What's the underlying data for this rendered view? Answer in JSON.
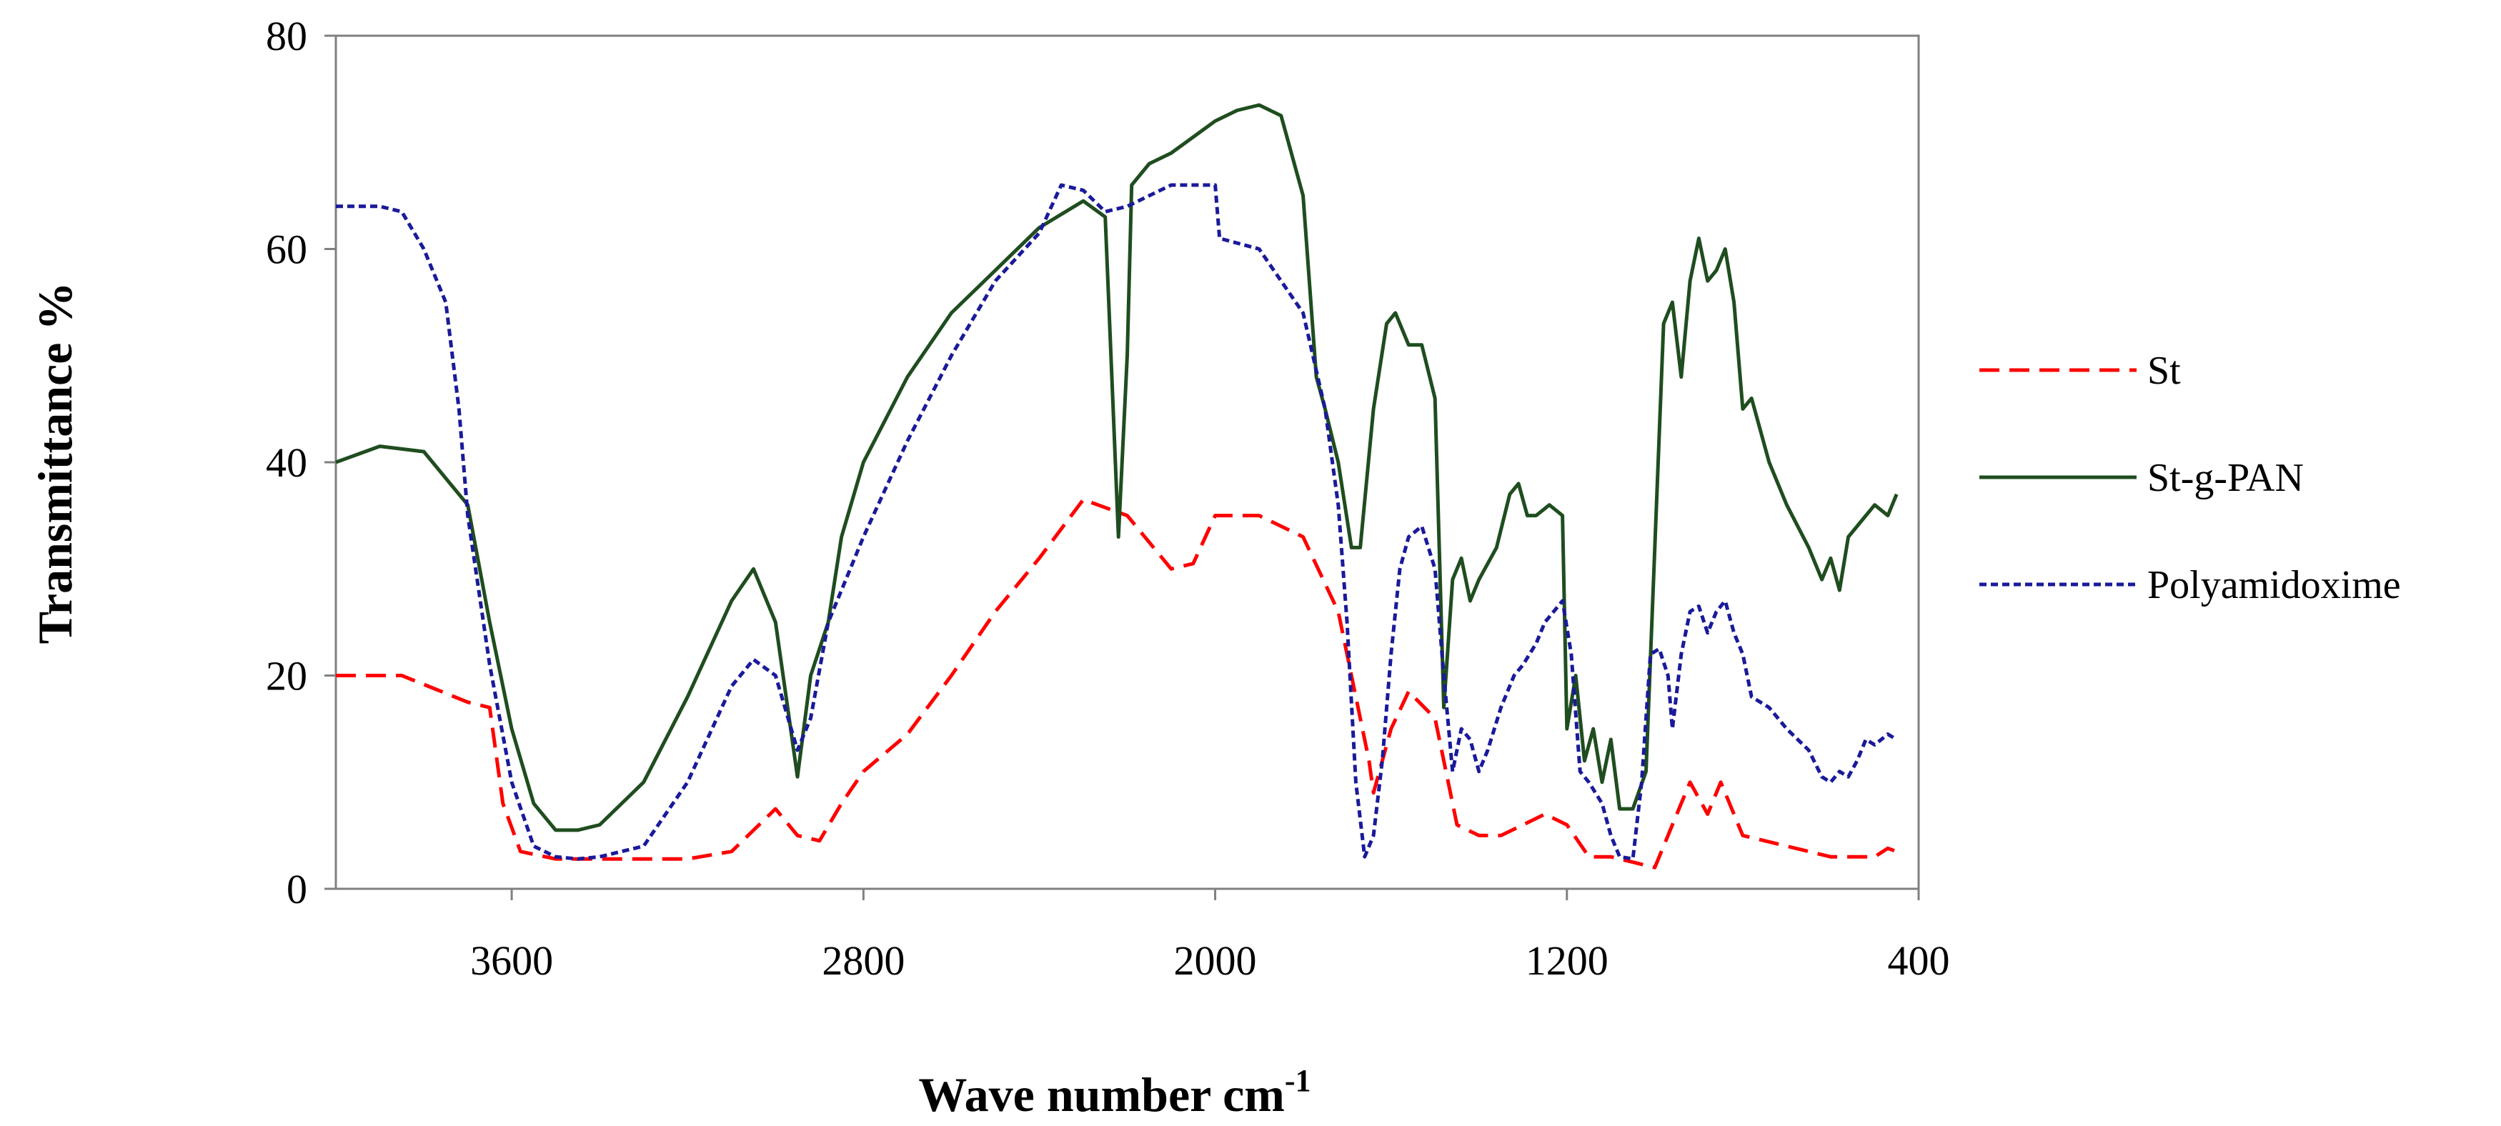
{
  "chart_data": {
    "type": "line",
    "title": "",
    "xlabel": "Wave number cm",
    "xlabel_superscript": "-1",
    "ylabel": "Transmittance %",
    "xlim": [
      4000,
      400
    ],
    "ylim": [
      0,
      80
    ],
    "xticks": [
      {
        "value": 3600,
        "label": "3600"
      },
      {
        "value": 2800,
        "label": "2800"
      },
      {
        "value": 2000,
        "label": "2000"
      },
      {
        "value": 1200,
        "label": "1200"
      },
      {
        "value": 400,
        "label": "400"
      }
    ],
    "yticks": [
      {
        "value": 0,
        "label": "0"
      },
      {
        "value": 20,
        "label": "20"
      },
      {
        "value": 40,
        "label": "40"
      },
      {
        "value": 60,
        "label": "60"
      },
      {
        "value": 80,
        "label": "80"
      }
    ],
    "legend_position": "right",
    "series": [
      {
        "name": "St",
        "color": "#ff0000",
        "dash": "long-dash",
        "points": [
          [
            4000,
            20
          ],
          [
            3850,
            20
          ],
          [
            3700,
            17.5
          ],
          [
            3650,
            17
          ],
          [
            3620,
            8
          ],
          [
            3580,
            3.5
          ],
          [
            3500,
            2.8
          ],
          [
            3400,
            2.8
          ],
          [
            3200,
            2.8
          ],
          [
            3100,
            3.5
          ],
          [
            3000,
            7.5
          ],
          [
            2950,
            5
          ],
          [
            2900,
            4.5
          ],
          [
            2850,
            8
          ],
          [
            2800,
            11
          ],
          [
            2700,
            14.5
          ],
          [
            2600,
            20
          ],
          [
            2500,
            26
          ],
          [
            2400,
            31
          ],
          [
            2300,
            36.5
          ],
          [
            2200,
            35
          ],
          [
            2100,
            30
          ],
          [
            2050,
            30.5
          ],
          [
            2000,
            35
          ],
          [
            1900,
            35
          ],
          [
            1800,
            33
          ],
          [
            1720,
            26
          ],
          [
            1650,
            12
          ],
          [
            1640,
            9
          ],
          [
            1600,
            15
          ],
          [
            1560,
            18.5
          ],
          [
            1500,
            16
          ],
          [
            1450,
            6
          ],
          [
            1400,
            5
          ],
          [
            1350,
            5
          ],
          [
            1300,
            6
          ],
          [
            1250,
            7
          ],
          [
            1200,
            6
          ],
          [
            1150,
            3
          ],
          [
            1100,
            3
          ],
          [
            1050,
            2.5
          ],
          [
            1000,
            2
          ],
          [
            950,
            7
          ],
          [
            920,
            10
          ],
          [
            880,
            7
          ],
          [
            850,
            10
          ],
          [
            800,
            5
          ],
          [
            700,
            4
          ],
          [
            600,
            3
          ],
          [
            500,
            3
          ],
          [
            470,
            3.8
          ],
          [
            450,
            3.5
          ]
        ]
      },
      {
        "name": "St-g-PAN",
        "color": "#1f4d1f",
        "dash": "solid",
        "points": [
          [
            4000,
            40
          ],
          [
            3900,
            41.5
          ],
          [
            3800,
            41
          ],
          [
            3700,
            36
          ],
          [
            3650,
            25
          ],
          [
            3600,
            15
          ],
          [
            3550,
            8
          ],
          [
            3500,
            5.5
          ],
          [
            3450,
            5.5
          ],
          [
            3400,
            6
          ],
          [
            3300,
            10
          ],
          [
            3200,
            18
          ],
          [
            3100,
            27
          ],
          [
            3050,
            30
          ],
          [
            3000,
            25
          ],
          [
            2950,
            10.5
          ],
          [
            2920,
            20
          ],
          [
            2880,
            25
          ],
          [
            2850,
            33
          ],
          [
            2800,
            40
          ],
          [
            2700,
            48
          ],
          [
            2600,
            54
          ],
          [
            2500,
            58
          ],
          [
            2400,
            62
          ],
          [
            2300,
            64.5
          ],
          [
            2250,
            63
          ],
          [
            2220,
            33
          ],
          [
            2200,
            50
          ],
          [
            2190,
            66
          ],
          [
            2150,
            68
          ],
          [
            2100,
            69
          ],
          [
            2050,
            70.5
          ],
          [
            2000,
            72
          ],
          [
            1950,
            73
          ],
          [
            1900,
            73.5
          ],
          [
            1850,
            72.5
          ],
          [
            1800,
            65
          ],
          [
            1770,
            48
          ],
          [
            1750,
            45
          ],
          [
            1720,
            40
          ],
          [
            1690,
            32
          ],
          [
            1670,
            32
          ],
          [
            1640,
            45
          ],
          [
            1610,
            53
          ],
          [
            1590,
            54
          ],
          [
            1560,
            51
          ],
          [
            1530,
            51
          ],
          [
            1500,
            46
          ],
          [
            1480,
            17
          ],
          [
            1460,
            29
          ],
          [
            1440,
            31
          ],
          [
            1420,
            27
          ],
          [
            1400,
            29
          ],
          [
            1360,
            32
          ],
          [
            1330,
            37
          ],
          [
            1310,
            38
          ],
          [
            1290,
            35
          ],
          [
            1270,
            35
          ],
          [
            1240,
            36
          ],
          [
            1210,
            35
          ],
          [
            1200,
            15
          ],
          [
            1180,
            20
          ],
          [
            1160,
            12
          ],
          [
            1140,
            15
          ],
          [
            1120,
            10
          ],
          [
            1100,
            14
          ],
          [
            1080,
            7.5
          ],
          [
            1050,
            7.5
          ],
          [
            1020,
            11
          ],
          [
            980,
            53
          ],
          [
            960,
            55
          ],
          [
            940,
            48
          ],
          [
            920,
            57
          ],
          [
            900,
            61
          ],
          [
            880,
            57
          ],
          [
            860,
            58
          ],
          [
            840,
            60
          ],
          [
            820,
            55
          ],
          [
            800,
            45
          ],
          [
            780,
            46
          ],
          [
            760,
            43
          ],
          [
            740,
            40
          ],
          [
            700,
            36
          ],
          [
            650,
            32
          ],
          [
            620,
            29
          ],
          [
            600,
            31
          ],
          [
            580,
            28
          ],
          [
            560,
            33
          ],
          [
            520,
            35
          ],
          [
            500,
            36
          ],
          [
            470,
            35
          ],
          [
            450,
            37
          ]
        ]
      },
      {
        "name": "Polyamidoxime",
        "color": "#1a1a9a",
        "dash": "short-dash",
        "points": [
          [
            4000,
            64
          ],
          [
            3900,
            64
          ],
          [
            3850,
            63.5
          ],
          [
            3800,
            60
          ],
          [
            3750,
            55
          ],
          [
            3720,
            45
          ],
          [
            3700,
            35
          ],
          [
            3650,
            21
          ],
          [
            3600,
            10
          ],
          [
            3550,
            4
          ],
          [
            3500,
            3
          ],
          [
            3450,
            2.8
          ],
          [
            3400,
            3
          ],
          [
            3300,
            4
          ],
          [
            3200,
            10
          ],
          [
            3100,
            19
          ],
          [
            3050,
            21.5
          ],
          [
            3000,
            20
          ],
          [
            2950,
            13
          ],
          [
            2920,
            16
          ],
          [
            2880,
            25
          ],
          [
            2850,
            28
          ],
          [
            2800,
            33
          ],
          [
            2700,
            42
          ],
          [
            2600,
            50
          ],
          [
            2500,
            57
          ],
          [
            2400,
            61.5
          ],
          [
            2350,
            66
          ],
          [
            2300,
            65.5
          ],
          [
            2250,
            63.5
          ],
          [
            2200,
            64
          ],
          [
            2100,
            66
          ],
          [
            2000,
            66
          ],
          [
            1990,
            61
          ],
          [
            1900,
            60
          ],
          [
            1800,
            54
          ],
          [
            1750,
            45
          ],
          [
            1720,
            36
          ],
          [
            1700,
            25
          ],
          [
            1680,
            10
          ],
          [
            1660,
            3
          ],
          [
            1640,
            5
          ],
          [
            1620,
            12
          ],
          [
            1600,
            22
          ],
          [
            1580,
            30
          ],
          [
            1560,
            33
          ],
          [
            1530,
            34
          ],
          [
            1500,
            30
          ],
          [
            1480,
            20
          ],
          [
            1460,
            11
          ],
          [
            1440,
            15
          ],
          [
            1420,
            14
          ],
          [
            1400,
            11
          ],
          [
            1380,
            13
          ],
          [
            1350,
            17
          ],
          [
            1320,
            20
          ],
          [
            1300,
            21
          ],
          [
            1270,
            23
          ],
          [
            1250,
            25
          ],
          [
            1230,
            26
          ],
          [
            1210,
            27
          ],
          [
            1190,
            22
          ],
          [
            1170,
            11
          ],
          [
            1150,
            10
          ],
          [
            1120,
            8
          ],
          [
            1100,
            5
          ],
          [
            1080,
            3
          ],
          [
            1050,
            2.8
          ],
          [
            1030,
            10
          ],
          [
            1010,
            22
          ],
          [
            990,
            22.5
          ],
          [
            970,
            20
          ],
          [
            960,
            15
          ],
          [
            940,
            22
          ],
          [
            920,
            26
          ],
          [
            900,
            26.5
          ],
          [
            880,
            24
          ],
          [
            860,
            26
          ],
          [
            840,
            27
          ],
          [
            820,
            24
          ],
          [
            800,
            22
          ],
          [
            780,
            18
          ],
          [
            760,
            17.5
          ],
          [
            740,
            17
          ],
          [
            700,
            15
          ],
          [
            650,
            13
          ],
          [
            620,
            10.5
          ],
          [
            600,
            10
          ],
          [
            580,
            11
          ],
          [
            560,
            10.5
          ],
          [
            540,
            12
          ],
          [
            520,
            14
          ],
          [
            500,
            13.5
          ],
          [
            470,
            14.5
          ],
          [
            450,
            14
          ]
        ]
      }
    ]
  }
}
